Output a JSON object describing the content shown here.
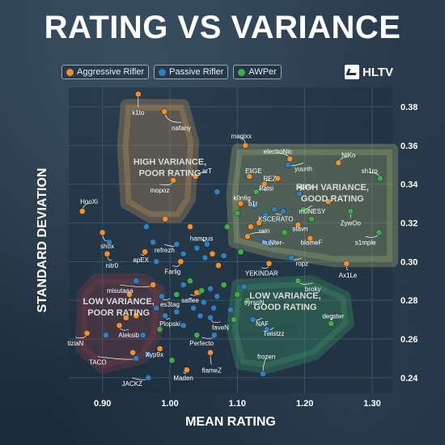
{
  "title": "RATING VS VARIANCE",
  "brand": "HLTV",
  "legend": [
    {
      "label": "Aggressive Rifler",
      "color": "#f28e2b"
    },
    {
      "label": "Passive Rifler",
      "color": "#2f7fc1"
    },
    {
      "label": "AWPer",
      "color": "#3fae49"
    }
  ],
  "chart_data": {
    "type": "scatter",
    "title": "RATING VS VARIANCE",
    "xlabel": "MEAN RATING",
    "ylabel": "STANDARD DEVIATION",
    "xlim": [
      0.85,
      1.33
    ],
    "ylim": [
      0.232,
      0.39
    ],
    "x_ticks": [
      0.9,
      1.0,
      1.1,
      1.2,
      1.3
    ],
    "y_ticks": [
      0.24,
      0.26,
      0.28,
      0.3,
      0.32,
      0.34,
      0.36,
      0.38
    ],
    "x_tick_labels": [
      "0.90",
      "1.00",
      "1.10",
      "1.20",
      "1.30"
    ],
    "y_tick_labels": [
      "0.24",
      "0.26",
      "0.28",
      "0.30",
      "0.32",
      "0.34",
      "0.36",
      "0.38"
    ],
    "grid": true,
    "legend_position": "top-left",
    "region_labels": [
      {
        "text": "HIGH VARIANCE,",
        "text2": "POOR RATING",
        "x": 1.0,
        "y": 0.35,
        "color": "#c8a878"
      },
      {
        "text": "HIGH VARIANCE,",
        "text2": "GOOD RATING",
        "x": 1.241,
        "y": 0.337,
        "color": "#d6d8b0"
      },
      {
        "text": "LOW VARIANCE,",
        "text2": "POOR RATING",
        "x": 0.924,
        "y": 0.278,
        "color": "#c8a0a0"
      },
      {
        "text": "LOW VARIANCE,",
        "text2": "GOOD RATING",
        "x": 1.171,
        "y": 0.281,
        "color": "#b0d0c0"
      }
    ],
    "points": [
      {
        "name": "k1to",
        "x": 0.953,
        "y": 0.3865,
        "role": "Aggressive Rifler",
        "lx": 0.953,
        "ly": 0.377
      },
      {
        "name": "nafany",
        "x": 0.992,
        "y": 0.3775,
        "role": "Aggressive Rifler",
        "lx": 1.017,
        "ly": 0.369
      },
      {
        "name": "magixx",
        "x": 1.112,
        "y": 0.36,
        "role": "Aggressive Rifler",
        "lx": 1.106,
        "ly": 0.365
      },
      {
        "name": "electroNic",
        "x": 1.178,
        "y": 0.353,
        "role": "Aggressive Rifler",
        "lx": 1.16,
        "ly": 0.357
      },
      {
        "name": "NiKo",
        "x": 1.25,
        "y": 0.351,
        "role": "Aggressive Rifler",
        "lx": 1.265,
        "ly": 0.355
      },
      {
        "name": "yuurih",
        "x": 1.175,
        "y": 0.35,
        "role": "Passive Rifler",
        "lx": 1.198,
        "ly": 0.348
      },
      {
        "name": "sh1ro",
        "x": 1.312,
        "y": 0.343,
        "role": "AWPer",
        "lx": 1.296,
        "ly": 0.347
      },
      {
        "name": "EliGE",
        "x": 1.118,
        "y": 0.344,
        "role": "Aggressive Rifler",
        "lx": 1.124,
        "ly": 0.347
      },
      {
        "name": "REZ",
        "x": 1.14,
        "y": 0.34,
        "role": "Aggressive Rifler",
        "lx": 1.148,
        "ly": 0.343
      },
      {
        "name": "arT",
        "x": 1.038,
        "y": 0.344,
        "role": "Aggressive Rifler",
        "lx": 1.055,
        "ly": 0.347
      },
      {
        "name": "mopoz",
        "x": 1.005,
        "y": 0.342,
        "role": "Aggressive Rifler",
        "lx": 0.985,
        "ly": 0.337
      },
      {
        "name": "Patsi",
        "x": 1.128,
        "y": 0.336,
        "role": "AWPer",
        "lx": 1.143,
        "ly": 0.338
      },
      {
        "name": "Spinx",
        "x": 1.192,
        "y": 0.335,
        "role": "Passive Rifler",
        "lx": 1.2,
        "ly": 0.339
      },
      {
        "name": "k0nfig",
        "x": 1.105,
        "y": 0.33,
        "role": "Aggressive Rifler",
        "lx": 1.107,
        "ly": 0.333
      },
      {
        "name": "b1t",
        "x": 1.125,
        "y": 0.329,
        "role": "Passive Rifler",
        "lx": 1.123,
        "ly": 0.33
      },
      {
        "name": "HooXi",
        "x": 0.87,
        "y": 0.326,
        "role": "Aggressive Rifler",
        "lx": 0.88,
        "ly": 0.331
      },
      {
        "name": "m0NESY",
        "x": 1.198,
        "y": 0.327,
        "role": "AWPer",
        "lx": 1.211,
        "ly": 0.326
      },
      {
        "name": "KSCERATO",
        "x": 1.168,
        "y": 0.326,
        "role": "Passive Rifler",
        "lx": 1.157,
        "ly": 0.322
      },
      {
        "name": "ZywOo",
        "x": 1.268,
        "y": 0.326,
        "role": "AWPer",
        "lx": 1.268,
        "ly": 0.32
      },
      {
        "name": "rain",
        "x": 1.115,
        "y": 0.313,
        "role": "Aggressive Rifler",
        "lx": 1.14,
        "ly": 0.316
      },
      {
        "name": "stavn",
        "x": 1.19,
        "y": 0.319,
        "role": "Aggressive Rifler",
        "lx": 1.193,
        "ly": 0.317
      },
      {
        "name": "s1mple",
        "x": 1.31,
        "y": 0.315,
        "role": "AWPer",
        "lx": 1.29,
        "ly": 0.31
      },
      {
        "name": "huNter-",
        "x": 1.15,
        "y": 0.309,
        "role": "Passive Rifler",
        "lx": 1.153,
        "ly": 0.31
      },
      {
        "name": "blameF",
        "x": 1.208,
        "y": 0.312,
        "role": "Aggressive Rifler",
        "lx": 1.21,
        "ly": 0.31
      },
      {
        "name": "hampus",
        "x": 1.055,
        "y": 0.309,
        "role": "Passive Rifler",
        "lx": 1.047,
        "ly": 0.312
      },
      {
        "name": "shox",
        "x": 0.9,
        "y": 0.315,
        "role": "Aggressive Rifler",
        "lx": 0.907,
        "ly": 0.308
      },
      {
        "name": "refrezh",
        "x": 1.01,
        "y": 0.309,
        "role": "Passive Rifler",
        "lx": 0.992,
        "ly": 0.306
      },
      {
        "name": "apEX",
        "x": 0.963,
        "y": 0.305,
        "role": "Aggressive Rifler",
        "lx": 0.957,
        "ly": 0.301
      },
      {
        "name": "nitr0",
        "x": 0.907,
        "y": 0.304,
        "role": "Aggressive Rifler",
        "lx": 0.914,
        "ly": 0.298
      },
      {
        "name": "ropz",
        "x": 1.18,
        "y": 0.302,
        "role": "Passive Rifler",
        "lx": 1.196,
        "ly": 0.299
      },
      {
        "name": "Farlig",
        "x": 1.016,
        "y": 0.3,
        "role": "Aggressive Rifler",
        "lx": 1.004,
        "ly": 0.295
      },
      {
        "name": "YEKINDAR",
        "x": 1.147,
        "y": 0.299,
        "role": "Aggressive Rifler",
        "lx": 1.136,
        "ly": 0.294
      },
      {
        "name": "Ax1Le",
        "x": 1.262,
        "y": 0.299,
        "role": "Aggressive Rifler",
        "lx": 1.264,
        "ly": 0.293
      },
      {
        "name": "broky",
        "x": 1.19,
        "y": 0.29,
        "role": "AWPer",
        "lx": 1.212,
        "ly": 0.286
      },
      {
        "name": "misutaaa",
        "x": 0.975,
        "y": 0.288,
        "role": "Aggressive Rifler",
        "lx": 0.926,
        "ly": 0.285
      },
      {
        "name": "saffee",
        "x": 1.047,
        "y": 0.285,
        "role": "AWPer",
        "lx": 1.03,
        "ly": 0.28
      },
      {
        "name": "es3tag",
        "x": 0.988,
        "y": 0.282,
        "role": "Passive Rifler",
        "lx": 1.0,
        "ly": 0.278
      },
      {
        "name": "syrsoN",
        "x": 1.115,
        "y": 0.28,
        "role": "AWPer",
        "lx": 1.125,
        "ly": 0.279
      },
      {
        "name": "degster",
        "x": 1.239,
        "y": 0.268,
        "role": "AWPer",
        "lx": 1.242,
        "ly": 0.272
      },
      {
        "name": "Plopski",
        "x": 0.993,
        "y": 0.272,
        "role": "Passive Rifler",
        "lx": 1.0,
        "ly": 0.268
      },
      {
        "name": "faveN",
        "x": 1.06,
        "y": 0.271,
        "role": "Passive Rifler",
        "lx": 1.075,
        "ly": 0.266
      },
      {
        "name": "NAF",
        "x": 1.123,
        "y": 0.27,
        "role": "Passive Rifler",
        "lx": 1.137,
        "ly": 0.268
      },
      {
        "name": "Twistzz",
        "x": 1.144,
        "y": 0.265,
        "role": "Passive Rifler",
        "lx": 1.154,
        "ly": 0.263
      },
      {
        "name": "tiziaN",
        "x": 0.877,
        "y": 0.263,
        "role": "Aggressive Rifler",
        "lx": 0.86,
        "ly": 0.258
      },
      {
        "name": "Aleksib",
        "x": 0.925,
        "y": 0.267,
        "role": "Aggressive Rifler",
        "lx": 0.939,
        "ly": 0.262
      },
      {
        "name": "Perfecto",
        "x": 1.066,
        "y": 0.262,
        "role": "Passive Rifler",
        "lx": 1.047,
        "ly": 0.258
      },
      {
        "name": "frozen",
        "x": 1.138,
        "y": 0.242,
        "role": "Passive Rifler",
        "lx": 1.143,
        "ly": 0.251
      },
      {
        "name": "Xyp9x",
        "x": 0.967,
        "y": 0.252,
        "role": "Passive Rifler",
        "lx": 0.977,
        "ly": 0.252
      },
      {
        "name": "TACO",
        "x": 0.95,
        "y": 0.25,
        "role": "Passive Rifler",
        "lx": 0.893,
        "ly": 0.248
      },
      {
        "name": "flameZ",
        "x": 1.06,
        "y": 0.253,
        "role": "Aggressive Rifler",
        "lx": 1.062,
        "ly": 0.244
      },
      {
        "name": "Maden",
        "x": 1.025,
        "y": 0.244,
        "role": "Aggressive Rifler",
        "lx": 1.02,
        "ly": 0.24
      },
      {
        "name": "JACKZ",
        "x": 0.968,
        "y": 0.24,
        "role": "Passive Rifler",
        "lx": 0.944,
        "ly": 0.237
      }
    ],
    "extra_points": [
      {
        "x": 0.993,
        "y": 0.322,
        "role": "Aggressive Rifler"
      },
      {
        "x": 0.975,
        "y": 0.31,
        "role": "Passive Rifler"
      },
      {
        "x": 0.98,
        "y": 0.3,
        "role": "Passive Rifler"
      },
      {
        "x": 0.965,
        "y": 0.318,
        "role": "Passive Rifler"
      },
      {
        "x": 0.91,
        "y": 0.31,
        "role": "Passive Rifler"
      },
      {
        "x": 1.02,
        "y": 0.304,
        "role": "Passive Rifler"
      },
      {
        "x": 1.03,
        "y": 0.318,
        "role": "Aggressive Rifler"
      },
      {
        "x": 1.04,
        "y": 0.307,
        "role": "Passive Rifler"
      },
      {
        "x": 1.052,
        "y": 0.302,
        "role": "Passive Rifler"
      },
      {
        "x": 1.063,
        "y": 0.304,
        "role": "Aggressive Rifler"
      },
      {
        "x": 1.072,
        "y": 0.298,
        "role": "Aggressive Rifler"
      },
      {
        "x": 1.08,
        "y": 0.303,
        "role": "Passive Rifler"
      },
      {
        "x": 1.07,
        "y": 0.336,
        "role": "Passive Rifler"
      },
      {
        "x": 1.085,
        "y": 0.318,
        "role": "AWPer"
      },
      {
        "x": 1.1,
        "y": 0.325,
        "role": "AWPer"
      },
      {
        "x": 1.12,
        "y": 0.318,
        "role": "Aggressive Rifler"
      },
      {
        "x": 1.105,
        "y": 0.305,
        "role": "AWPer"
      },
      {
        "x": 1.132,
        "y": 0.32,
        "role": "Aggressive Rifler"
      },
      {
        "x": 1.142,
        "y": 0.324,
        "role": "Passive Rifler"
      },
      {
        "x": 1.155,
        "y": 0.327,
        "role": "Passive Rifler"
      },
      {
        "x": 1.14,
        "y": 0.31,
        "role": "Passive Rifler"
      },
      {
        "x": 1.17,
        "y": 0.315,
        "role": "AWPer"
      },
      {
        "x": 1.21,
        "y": 0.322,
        "role": "AWPer"
      },
      {
        "x": 1.235,
        "y": 0.331,
        "role": "Aggressive Rifler"
      },
      {
        "x": 1.16,
        "y": 0.343,
        "role": "Aggressive Rifler"
      },
      {
        "x": 1.02,
        "y": 0.288,
        "role": "Passive Rifler"
      },
      {
        "x": 1.01,
        "y": 0.283,
        "role": "AWPer"
      },
      {
        "x": 1.03,
        "y": 0.29,
        "role": "AWPer"
      },
      {
        "x": 1.04,
        "y": 0.284,
        "role": "Aggressive Rifler"
      },
      {
        "x": 1.05,
        "y": 0.279,
        "role": "Passive Rifler"
      },
      {
        "x": 1.06,
        "y": 0.286,
        "role": "Passive Rifler"
      },
      {
        "x": 1.07,
        "y": 0.282,
        "role": "Passive Rifler"
      },
      {
        "x": 1.08,
        "y": 0.288,
        "role": "AWPer"
      },
      {
        "x": 1.09,
        "y": 0.275,
        "role": "Passive Rifler"
      },
      {
        "x": 1.1,
        "y": 0.283,
        "role": "AWPer"
      },
      {
        "x": 1.11,
        "y": 0.287,
        "role": "Passive Rifler"
      },
      {
        "x": 1.035,
        "y": 0.276,
        "role": "Passive Rifler"
      },
      {
        "x": 1.045,
        "y": 0.272,
        "role": "Passive Rifler"
      },
      {
        "x": 1.065,
        "y": 0.276,
        "role": "Passive Rifler"
      },
      {
        "x": 1.095,
        "y": 0.27,
        "role": "AWPer"
      },
      {
        "x": 1.02,
        "y": 0.267,
        "role": "Passive Rifler"
      },
      {
        "x": 1.01,
        "y": 0.274,
        "role": "Passive Rifler"
      },
      {
        "x": 0.98,
        "y": 0.276,
        "role": "Passive Rifler"
      },
      {
        "x": 0.985,
        "y": 0.265,
        "role": "AWPer"
      },
      {
        "x": 0.95,
        "y": 0.272,
        "role": "Aggressive Rifler"
      },
      {
        "x": 0.94,
        "y": 0.283,
        "role": "Aggressive Rifler"
      },
      {
        "x": 0.95,
        "y": 0.29,
        "role": "Passive Rifler"
      },
      {
        "x": 1.04,
        "y": 0.262,
        "role": "AWPer"
      },
      {
        "x": 0.985,
        "y": 0.255,
        "role": "Aggressive Rifler"
      },
      {
        "x": 0.96,
        "y": 0.262,
        "role": "Passive Rifler"
      },
      {
        "x": 0.905,
        "y": 0.262,
        "role": "Passive Rifler"
      },
      {
        "x": 0.935,
        "y": 0.271,
        "role": "Aggressive Rifler"
      },
      {
        "x": 0.945,
        "y": 0.253,
        "role": "Aggressive Rifler"
      },
      {
        "x": 1.003,
        "y": 0.249,
        "role": "AWPer"
      }
    ]
  }
}
